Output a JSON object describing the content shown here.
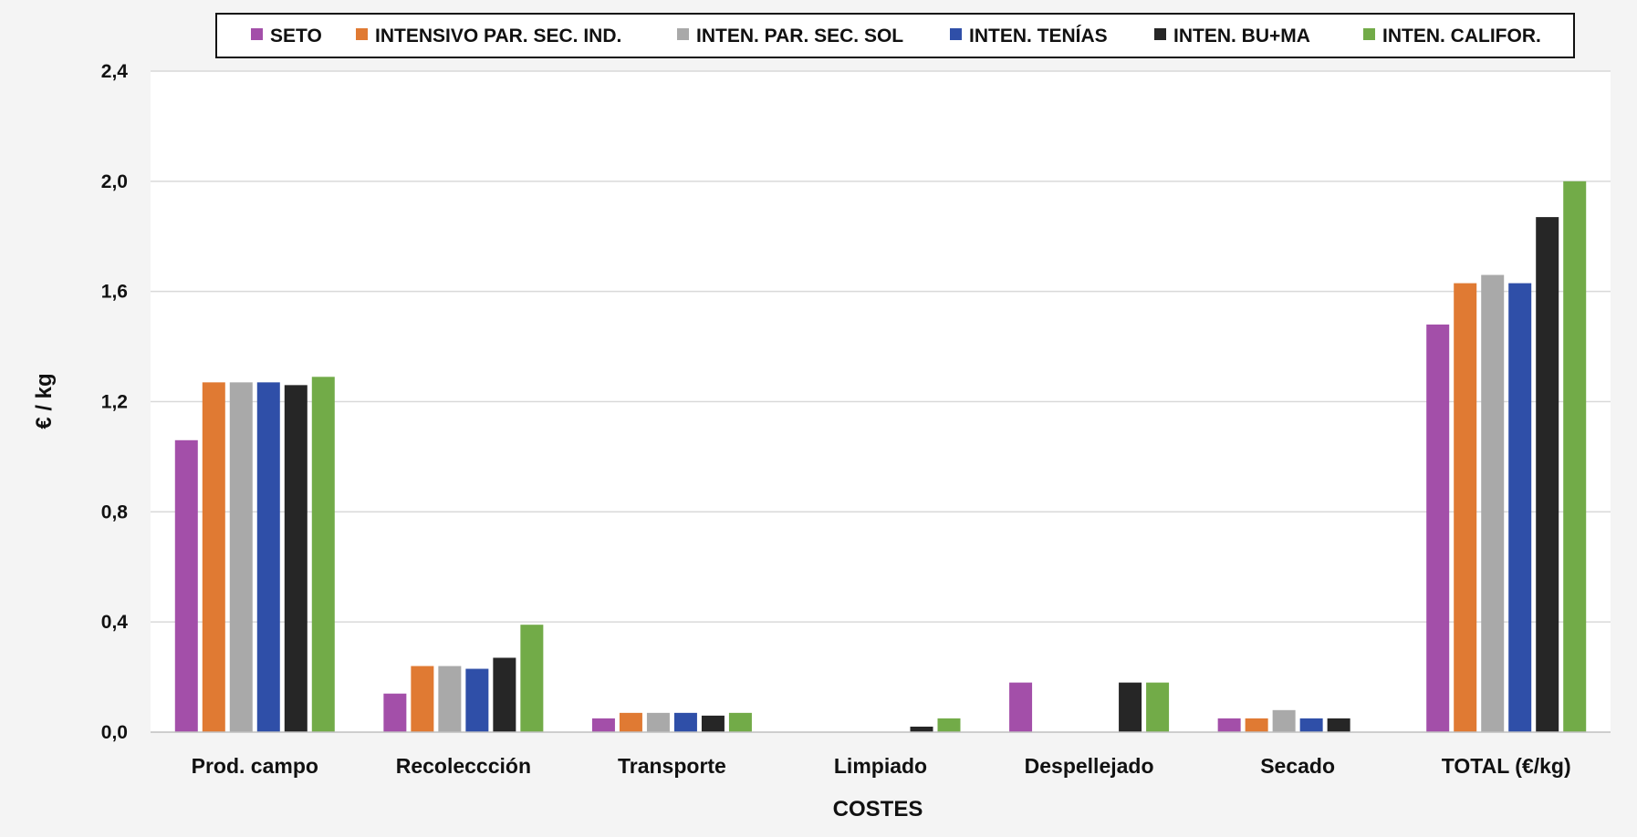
{
  "chart_data": {
    "type": "bar",
    "title": "",
    "xlabel": "COSTES",
    "ylabel": "€ / kg",
    "ylim": [
      0,
      2.4
    ],
    "yticks": [
      0.0,
      0.4,
      0.8,
      1.2,
      1.6,
      2.0,
      2.4
    ],
    "ytick_labels": [
      "0,0",
      "0,4",
      "0,8",
      "1,2",
      "1,6",
      "2,0",
      "2,4"
    ],
    "grid": true,
    "legend_position": "top",
    "categories": [
      "Prod. campo",
      "Recoleccción",
      "Transporte",
      "Limpiado",
      "Despellejado",
      "Secado",
      "TOTAL (€/kg)"
    ],
    "series": [
      {
        "name": "SETO",
        "color": "#a34fa9",
        "values": [
          1.06,
          0.14,
          0.05,
          0.0,
          0.18,
          0.05,
          1.48
        ]
      },
      {
        "name": "INTENSIVO PAR. SEC. IND.",
        "color": "#e07a33",
        "values": [
          1.27,
          0.24,
          0.07,
          0.0,
          0.0,
          0.05,
          1.63
        ]
      },
      {
        "name": "INTEN. PAR. SEC. SOL",
        "color": "#a9a9a9",
        "values": [
          1.27,
          0.24,
          0.07,
          0.0,
          0.0,
          0.08,
          1.66
        ]
      },
      {
        "name": "INTEN. TENÍAS",
        "color": "#2f4fa8",
        "values": [
          1.27,
          0.23,
          0.07,
          0.0,
          0.0,
          0.05,
          1.63
        ]
      },
      {
        "name": "INTEN. BU+MA",
        "color": "#262626",
        "values": [
          1.26,
          0.27,
          0.06,
          0.02,
          0.18,
          0.05,
          1.87
        ]
      },
      {
        "name": "INTEN. CALIFOR.",
        "color": "#72ab48",
        "values": [
          1.29,
          0.39,
          0.07,
          0.05,
          0.18,
          0.0,
          2.0
        ]
      }
    ]
  }
}
